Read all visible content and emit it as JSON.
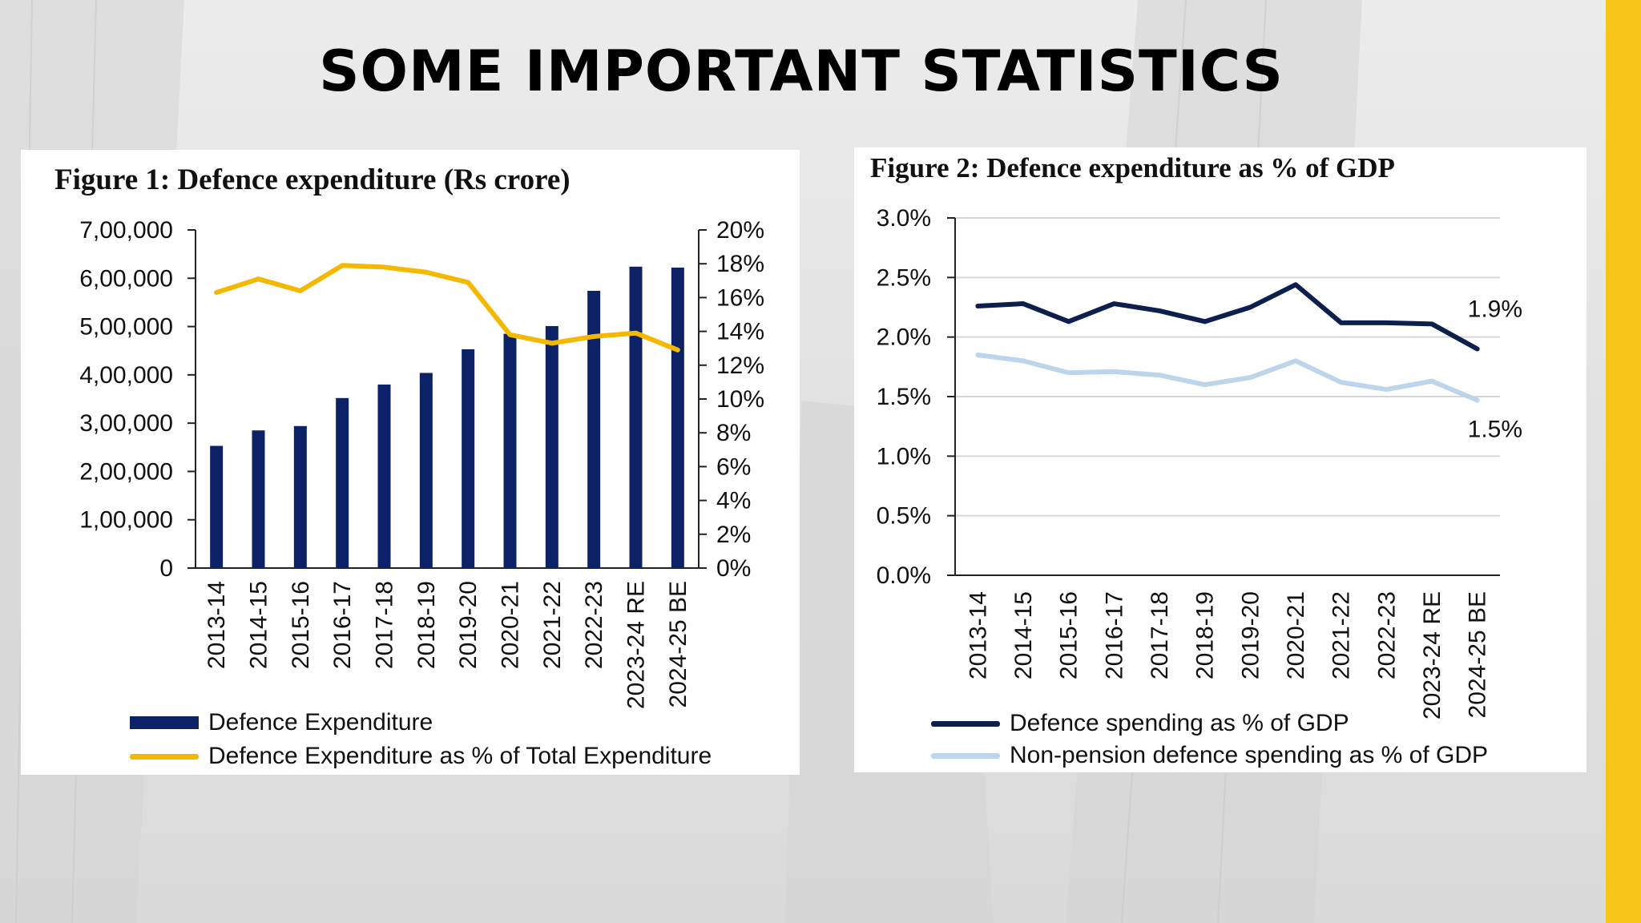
{
  "slide": {
    "title": "SOME IMPORTANT STATISTICS",
    "accent_color": "#f5c518"
  },
  "chart_data": [
    {
      "type": "bar",
      "title": "Figure 1: Defence expenditure (Rs crore)",
      "categories": [
        "2013-14",
        "2014-15",
        "2015-16",
        "2016-17",
        "2017-18",
        "2018-19",
        "2019-20",
        "2020-21",
        "2021-22",
        "2022-23",
        "2023-24 RE",
        "2024-25 BE"
      ],
      "series": [
        {
          "name": "Defence Expenditure",
          "axis": "left",
          "kind": "bar",
          "color": "#0d2266",
          "values": [
            253000,
            285000,
            294000,
            352000,
            380000,
            404000,
            453000,
            485000,
            501000,
            574000,
            624000,
            622000
          ]
        },
        {
          "name": "Defence Expenditure as % of Total Expenditure",
          "axis": "right",
          "kind": "line",
          "color": "#f5b800",
          "values": [
            16.3,
            17.1,
            16.4,
            17.9,
            17.8,
            17.5,
            16.9,
            13.8,
            13.3,
            13.7,
            13.9,
            12.9
          ]
        }
      ],
      "ylim_left": [
        0,
        700000
      ],
      "yticks_left": [
        {
          "v": 0,
          "label": "0"
        },
        {
          "v": 100000,
          "label": "1,00,000"
        },
        {
          "v": 200000,
          "label": "2,00,000"
        },
        {
          "v": 300000,
          "label": "3,00,000"
        },
        {
          "v": 400000,
          "label": "4,00,000"
        },
        {
          "v": 500000,
          "label": "5,00,000"
        },
        {
          "v": 600000,
          "label": "6,00,000"
        },
        {
          "v": 700000,
          "label": "7,00,000"
        }
      ],
      "ylim_right": [
        0,
        20
      ],
      "yticks_right": [
        {
          "v": 0,
          "label": "0%"
        },
        {
          "v": 2,
          "label": "2%"
        },
        {
          "v": 4,
          "label": "4%"
        },
        {
          "v": 6,
          "label": "6%"
        },
        {
          "v": 8,
          "label": "8%"
        },
        {
          "v": 10,
          "label": "10%"
        },
        {
          "v": 12,
          "label": "12%"
        },
        {
          "v": 14,
          "label": "14%"
        },
        {
          "v": 16,
          "label": "16%"
        },
        {
          "v": 18,
          "label": "18%"
        },
        {
          "v": 20,
          "label": "20%"
        }
      ],
      "grid": false,
      "legend": "bottom"
    },
    {
      "type": "line",
      "title": "Figure 2: Defence expenditure as % of GDP",
      "categories": [
        "2013-14",
        "2014-15",
        "2015-16",
        "2016-17",
        "2017-18",
        "2018-19",
        "2019-20",
        "2020-21",
        "2021-22",
        "2022-23",
        "2023-24 RE",
        "2024-25 BE"
      ],
      "series": [
        {
          "name": "Defence spending as % of GDP",
          "color": "#0d1f4d",
          "values": [
            2.26,
            2.28,
            2.13,
            2.28,
            2.22,
            2.13,
            2.25,
            2.44,
            2.12,
            2.12,
            2.11,
            1.9
          ],
          "end_label": "1.9%"
        },
        {
          "name": "Non-pension defence spending as % of GDP",
          "color": "#bcd5ea",
          "values": [
            1.85,
            1.8,
            1.7,
            1.71,
            1.68,
            1.6,
            1.66,
            1.8,
            1.62,
            1.56,
            1.63,
            1.47
          ],
          "end_label": "1.5%"
        }
      ],
      "ylim": [
        0,
        3
      ],
      "yticks": [
        {
          "v": 0,
          "label": "0.0%"
        },
        {
          "v": 0.5,
          "label": "0.5%"
        },
        {
          "v": 1,
          "label": "1.0%"
        },
        {
          "v": 1.5,
          "label": "1.5%"
        },
        {
          "v": 2,
          "label": "2.0%"
        },
        {
          "v": 2.5,
          "label": "2.5%"
        },
        {
          "v": 3,
          "label": "3.0%"
        }
      ],
      "grid": true,
      "legend": "bottom"
    }
  ]
}
